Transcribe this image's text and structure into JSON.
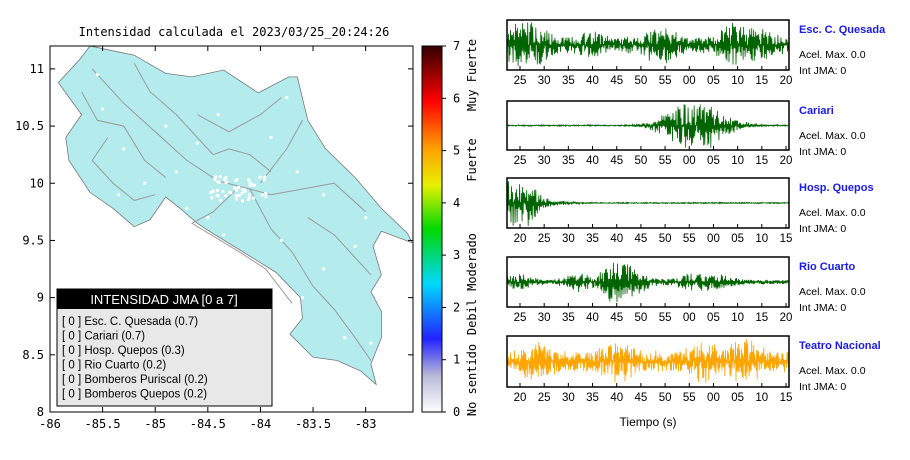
{
  "map": {
    "title": "Intensidad calculada el 2023/03/25_20:24:26",
    "xticks": [
      "-86",
      "-85.5",
      "-85",
      "-84.5",
      "-84",
      "-83.5",
      "-83"
    ],
    "xvals": [
      -86,
      -85.5,
      -85,
      -84.5,
      -84,
      -83.5,
      -83
    ],
    "yticks": [
      "11",
      "10.5",
      "10",
      "9.5",
      "9",
      "8.5",
      "8"
    ],
    "yvals": [
      11,
      10.5,
      10,
      9.5,
      9,
      8.5,
      8
    ],
    "xlim": [
      -86,
      -82.55
    ],
    "ylim": [
      8,
      11.2
    ],
    "land_color": "#b4ecee",
    "legend": {
      "title": "INTENSIDAD JMA [0 a 7]",
      "items": [
        "[ 0 ] Esc. C. Quesada (0.7)",
        "[ 0 ] Cariari (0.7)",
        "[ 0 ] Hosp. Quepos (0.3)",
        "[ 0 ] Rio Cuarto (0.2)",
        "[ 0 ] Bomberos Puriscal (0.2)",
        "[ 0 ] Bomberos Quepos (0.2)"
      ]
    }
  },
  "colorbar": {
    "ticks": [
      "7",
      "6",
      "5",
      "4",
      "3",
      "2",
      "1",
      "0"
    ],
    "labels": [
      "Muy Fuerte",
      "Fuerte",
      "Moderado",
      "Debil",
      "No sentido"
    ]
  },
  "chart_data": [
    {
      "type": "line",
      "station": "Esc. C. Quesada",
      "accel": "Acel. Max. 0.0",
      "int": "Int JMA: 0",
      "color": "#006400",
      "ticks": [
        "25",
        "30",
        "35",
        "40",
        "45",
        "50",
        "55",
        "00",
        "05",
        "10",
        "15",
        "20"
      ]
    },
    {
      "type": "line",
      "station": "Cariari",
      "accel": "Acel. Max. 0.0",
      "int": "Int JMA: 0",
      "color": "#006400",
      "ticks": [
        "25",
        "30",
        "35",
        "40",
        "45",
        "50",
        "55",
        "00",
        "05",
        "10",
        "15",
        "20"
      ]
    },
    {
      "type": "line",
      "station": "Hosp. Quepos",
      "accel": "Acel. Max. 0.0",
      "int": "Int JMA: 0",
      "color": "#006400",
      "ticks": [
        "20",
        "25",
        "30",
        "35",
        "40",
        "45",
        "50",
        "55",
        "00",
        "05",
        "10",
        "15"
      ]
    },
    {
      "type": "line",
      "station": "Rio Cuarto",
      "accel": "Acel. Max. 0.0",
      "int": "Int JMA: 0",
      "color": "#006400",
      "ticks": [
        "25",
        "30",
        "35",
        "40",
        "45",
        "50",
        "55",
        "00",
        "05",
        "10",
        "15",
        "20"
      ]
    },
    {
      "type": "line",
      "station": "Teatro Nacional",
      "accel": "Acel. Max. 0.0",
      "int": "Int JMA: 0",
      "color": "#ffa500",
      "ticks": [
        "20",
        "25",
        "30",
        "35",
        "40",
        "45",
        "50",
        "55",
        "00",
        "05",
        "10",
        "15"
      ],
      "xlabel": "Tiempo (s)"
    }
  ]
}
